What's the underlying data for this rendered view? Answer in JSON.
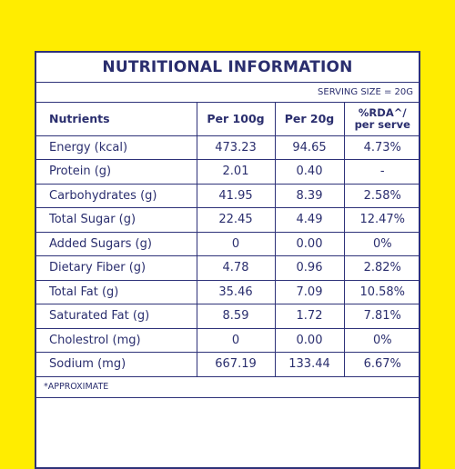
{
  "panel": {
    "title": "NUTRITIONAL INFORMATION",
    "serving_size": "SERVING SIZE = 20G",
    "headers": {
      "nutrients": "Nutrients",
      "per100": "Per 100g",
      "per20": "Per 20g",
      "rda_line1": "%RDA^/",
      "rda_line2": "per serve"
    },
    "rows": [
      {
        "name": "Energy (kcal)",
        "per100": "473.23",
        "per20": "94.65",
        "rda": "4.73%"
      },
      {
        "name": "Protein (g)",
        "per100": "2.01",
        "per20": "0.40",
        "rda": "-"
      },
      {
        "name": "Carbohydrates (g)",
        "per100": "41.95",
        "per20": "8.39",
        "rda": "2.58%"
      },
      {
        "name": "Total Sugar (g)",
        "per100": "22.45",
        "per20": "4.49",
        "rda": "12.47%"
      },
      {
        "name": "Added Sugars (g)",
        "per100": "0",
        "per20": "0.00",
        "rda": "0%"
      },
      {
        "name": "Dietary Fiber (g)",
        "per100": "4.78",
        "per20": "0.96",
        "rda": "2.82%"
      },
      {
        "name": "Total Fat (g)",
        "per100": "35.46",
        "per20": "7.09",
        "rda": "10.58%"
      },
      {
        "name": "Saturated Fat (g)",
        "per100": "8.59",
        "per20": "1.72",
        "rda": "7.81%"
      },
      {
        "name": "Cholestrol (mg)",
        "per100": "0",
        "per20": "0.00",
        "rda": "0%"
      },
      {
        "name": "Sodium (mg)",
        "per100": "667.19",
        "per20": "133.44",
        "rda": "6.67%"
      }
    ],
    "footnote": "*APPROXIMATE"
  },
  "colors": {
    "background": "#FFED00",
    "ink": "#2a2e6e",
    "border": "#2e3279"
  }
}
